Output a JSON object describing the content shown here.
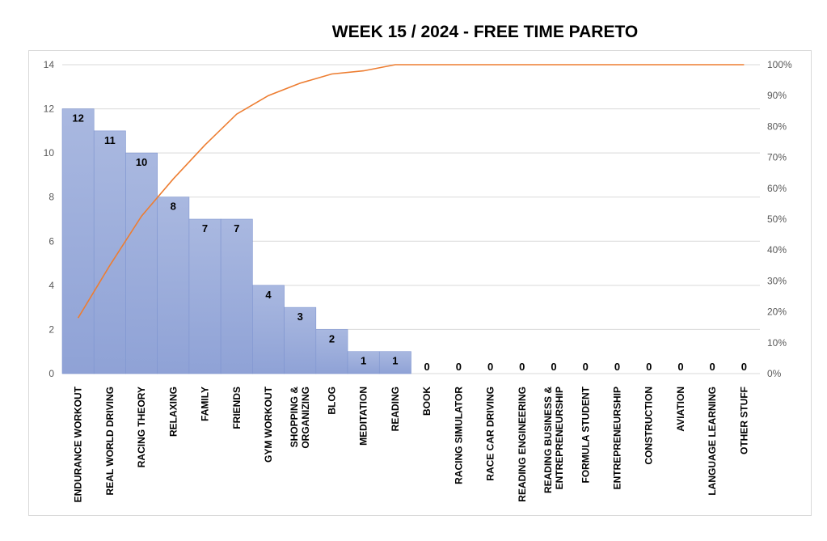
{
  "chart_data": {
    "type": "bar",
    "title": "WEEK 15 / 2024  - FREE TIME PARETO",
    "categories": [
      "ENDURANCE WORKOUT",
      "REAL WORLD DRIVING",
      "RACING THEORY",
      "RELAXING",
      "FAMILY",
      "FRIENDS",
      "GYM WORKOUT",
      "SHOPPING & ORGANIZING",
      "BLOG",
      "MEDITATION",
      "READING",
      "BOOK",
      "RACING SIMULATOR",
      "RACE CAR DRIVING",
      "READING ENGINEERING",
      "READING BUSINESS & ENTREPRENEURSHIP",
      "FORMULA STUDENT",
      "ENTREPRENEURSHIP",
      "CONSTRUCTION",
      "AVIATION",
      "LANGUAGE LEARNING",
      "OTHER STUFF"
    ],
    "category_lines": [
      [
        "ENDURANCE WORKOUT"
      ],
      [
        "REAL WORLD DRIVING"
      ],
      [
        "RACING THEORY"
      ],
      [
        "RELAXING"
      ],
      [
        "FAMILY"
      ],
      [
        "FRIENDS"
      ],
      [
        "GYM WORKOUT"
      ],
      [
        "SHOPPING &",
        "ORGANIZING"
      ],
      [
        "BLOG"
      ],
      [
        "MEDITATION"
      ],
      [
        "READING"
      ],
      [
        "BOOK"
      ],
      [
        "RACING SIMULATOR"
      ],
      [
        "RACE CAR DRIVING"
      ],
      [
        "READING ENGINEERING"
      ],
      [
        "READING BUSINESS &",
        "ENTREPRENEURSHIP"
      ],
      [
        "FORMULA STUDENT"
      ],
      [
        "ENTREPRENEURSHIP"
      ],
      [
        "CONSTRUCTION"
      ],
      [
        "AVIATION"
      ],
      [
        "LANGUAGE LEARNING"
      ],
      [
        "OTHER STUFF"
      ]
    ],
    "series": [
      {
        "type": "bar",
        "axis": "left",
        "values": [
          12,
          11,
          10,
          8,
          7,
          7,
          4,
          3,
          2,
          1,
          1,
          0,
          0,
          0,
          0,
          0,
          0,
          0,
          0,
          0,
          0,
          0
        ]
      },
      {
        "type": "line",
        "axis": "right",
        "unit": "%",
        "values": [
          18,
          35,
          51,
          63,
          74,
          84,
          90,
          94,
          97,
          98,
          100,
          100,
          100,
          100,
          100,
          100,
          100,
          100,
          100,
          100,
          100,
          100
        ]
      }
    ],
    "ylim": [
      0,
      14
    ],
    "yticks": [
      0,
      2,
      4,
      6,
      8,
      10,
      12,
      14
    ],
    "y2lim": [
      0,
      100
    ],
    "y2ticks": [
      "0%",
      "10%",
      "20%",
      "30%",
      "40%",
      "50%",
      "60%",
      "70%",
      "80%",
      "90%",
      "100%"
    ],
    "grid": true,
    "data_labels": true,
    "colors": {
      "bar_top": "#a9b8e0",
      "bar_bottom": "#8fa2d6",
      "bar_edge": "#7f95d0",
      "line": "#ed7d31",
      "grid": "#d9d9d9"
    }
  }
}
